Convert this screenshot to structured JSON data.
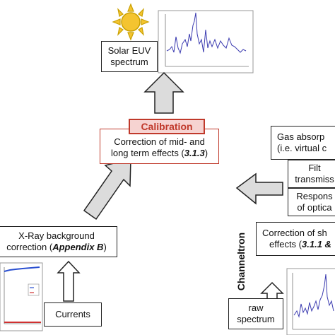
{
  "solar_box": {
    "line1": "Solar EUV",
    "line2": "spectrum"
  },
  "calibration": {
    "label": "Calibration",
    "line1": "Correction of mid- and",
    "line2_prefix": "long term effects (",
    "line2_ref": "3.1.3",
    "line2_suffix": ")"
  },
  "xray_box": {
    "line1": "X-Ray background",
    "line2_prefix": "correction (",
    "line2_ref": "Appendix B",
    "line2_suffix": ")"
  },
  "currents_box": {
    "label": "Currents"
  },
  "gas_box": {
    "line1": "Gas absorp",
    "line2": "(i.e. virtual c"
  },
  "filter_box": {
    "line1": "Filt",
    "line2": "transmiss"
  },
  "respons_box": {
    "line1": "Respons",
    "line2": "of optica"
  },
  "short_box": {
    "line1": "Correction of sh",
    "line2_prefix": "effects (",
    "line2_ref": "3.1.1 &"
  },
  "raw_box": {
    "line1": "raw",
    "line2": "spectrum"
  },
  "channeltron_label": "Channeltron",
  "colors": {
    "calibration_red": "#c0392b",
    "calibration_fill": "#f6d3d1",
    "spectrum_line": "#3b3bb0",
    "sun": "#f4c430",
    "arrow_fill": "#dcdcdc"
  }
}
